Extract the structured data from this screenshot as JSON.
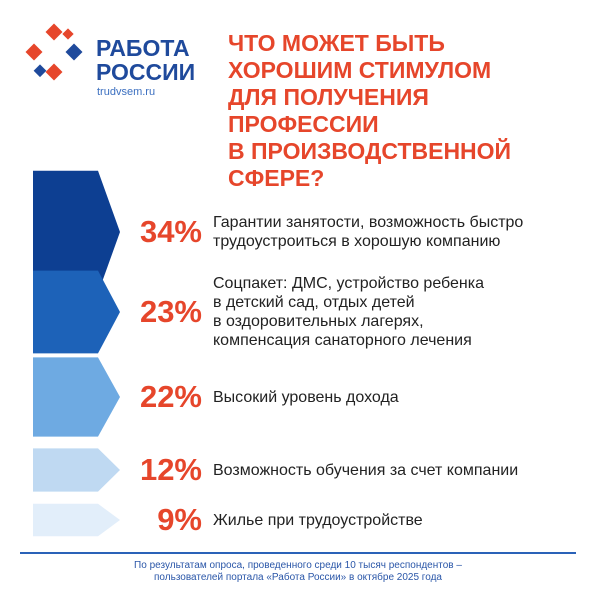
{
  "logo": {
    "line1": "РАБОТА",
    "line2": "РОССИИ",
    "site": "trudvsem.ru"
  },
  "chart_data": {
    "type": "bar",
    "title": "ЧТО МОЖЕТ БЫТЬ\nХОРОШИМ СТИМУЛОМ\nДЛЯ ПОЛУЧЕНИЯ\nПРОФЕССИИ\nВ ПРОИЗВОДСТВЕННОЙ\nСФЕРЕ?",
    "categories": [
      "Гарантии занятости, возможность быстро\nтрудоустроиться в хорошую компанию",
      "Соцпакет: ДМС, устройство ребенка\nв детский сад, отдых детей\nв оздоровительных лагерях,\nкомпенсация санаторного лечения",
      "Высокий уровень дохода",
      "Возможность обучения за счет компании",
      "Жилье при трудоустройстве"
    ],
    "values": [
      34,
      23,
      22,
      12,
      9
    ],
    "value_labels": [
      "34%",
      "23%",
      "22%",
      "12%",
      "9%"
    ],
    "colors": [
      "#0d3f92",
      "#1d62b8",
      "#6eaae2",
      "#bfd9f2",
      "#e2eefa"
    ],
    "footnote": "По результатам опроса, проведенного среди 10 тысяч респондентов –\nпользователей портала «Работа России» в октябре 2025 года"
  }
}
